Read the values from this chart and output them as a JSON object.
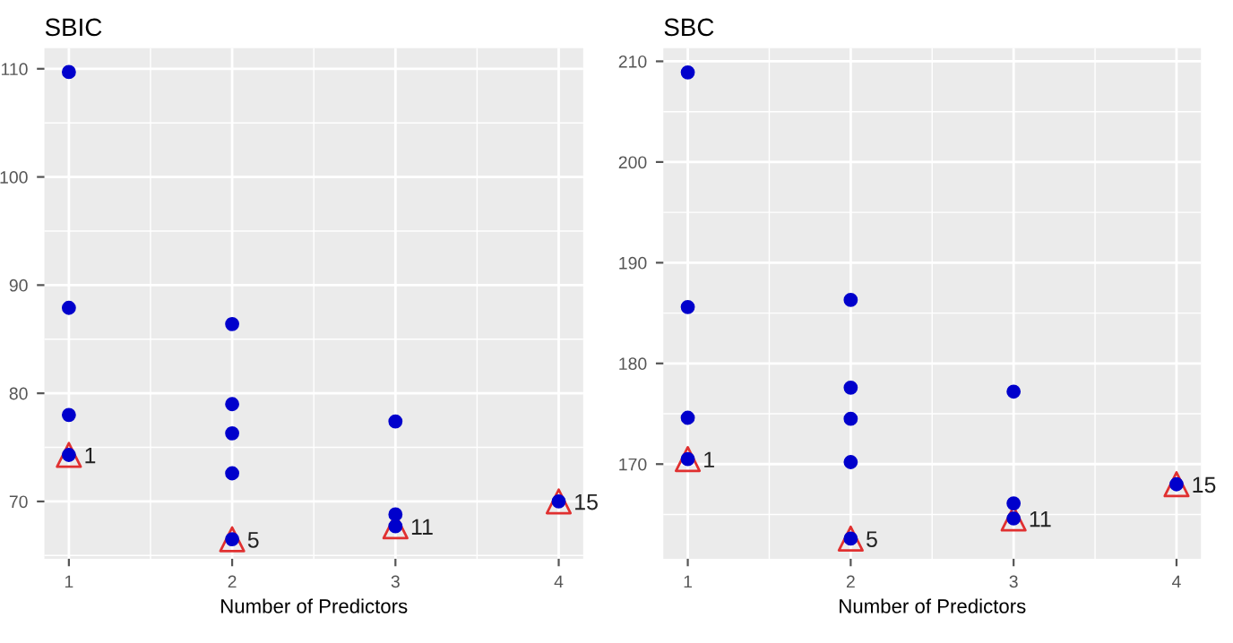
{
  "chart_data": [
    {
      "type": "scatter",
      "title": "SBIC",
      "xlabel": "Number of Predictors",
      "xlim": [
        0.85,
        4.15
      ],
      "xticks": [
        1,
        2,
        3,
        4
      ],
      "ylim": [
        64.7,
        111.9
      ],
      "yticks": [
        70,
        80,
        90,
        100,
        110
      ],
      "grid": true,
      "legend": false,
      "series": [
        {
          "color": "#e03030",
          "marker": "triangle",
          "x": [
            1,
            2,
            3,
            4
          ],
          "values": [
            74.3,
            66.5,
            67.7,
            70.0
          ]
        },
        {
          "color": "#0000cc",
          "marker": "circle",
          "x": [
            1,
            1,
            1,
            1,
            2,
            2,
            2,
            2,
            2,
            3,
            3,
            3,
            4
          ],
          "values": [
            109.7,
            87.9,
            78.0,
            74.3,
            86.4,
            79.0,
            76.3,
            72.6,
            66.5,
            77.4,
            68.8,
            67.7,
            70.0
          ]
        }
      ],
      "annotations": [
        {
          "text": "1",
          "x": 1,
          "y": 74.3
        },
        {
          "text": "5",
          "x": 2,
          "y": 66.5
        },
        {
          "text": "11",
          "x": 3,
          "y": 67.7
        },
        {
          "text": "15",
          "x": 4,
          "y": 70.0
        }
      ]
    },
    {
      "type": "scatter",
      "title": "SBC",
      "xlabel": "Number of Predictors",
      "xlim": [
        0.85,
        4.15
      ],
      "xticks": [
        1,
        2,
        3,
        4
      ],
      "ylim": [
        160.6,
        211.3
      ],
      "yticks": [
        170,
        180,
        190,
        200,
        210
      ],
      "grid": true,
      "legend": false,
      "series": [
        {
          "color": "#e03030",
          "marker": "triangle",
          "x": [
            1,
            2,
            3,
            4
          ],
          "values": [
            170.5,
            162.6,
            164.6,
            168.0
          ]
        },
        {
          "color": "#0000cc",
          "marker": "circle",
          "x": [
            1,
            1,
            1,
            1,
            2,
            2,
            2,
            2,
            2,
            3,
            3,
            3,
            4
          ],
          "values": [
            208.9,
            185.6,
            174.6,
            170.5,
            186.3,
            177.6,
            174.5,
            170.2,
            162.6,
            177.2,
            166.1,
            164.6,
            168.0
          ]
        }
      ],
      "annotations": [
        {
          "text": "1",
          "x": 1,
          "y": 170.5
        },
        {
          "text": "5",
          "x": 2,
          "y": 162.6
        },
        {
          "text": "11",
          "x": 3,
          "y": 164.6
        },
        {
          "text": "15",
          "x": 4,
          "y": 168.0
        }
      ]
    }
  ]
}
